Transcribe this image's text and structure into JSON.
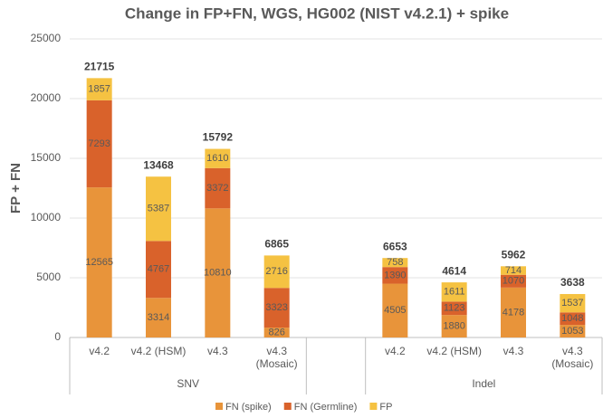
{
  "chart_data": {
    "type": "stacked_bar",
    "title": "Change in FP+FN, WGS, HG002 (NIST v4.2.1) + spike",
    "y_label": "FP + FN",
    "groups": [
      {
        "name": "SNV",
        "categories": [
          "v4.2",
          "v4.2 (HSM)",
          "v4.3",
          "v4.3 (Mosaic)"
        ]
      },
      {
        "name": "Indel",
        "categories": [
          "v4.2",
          "v4.2 (HSM)",
          "v4.3",
          "v4.3 (Mosaic)"
        ]
      }
    ],
    "series": [
      {
        "name": "FN (spike)",
        "color": "#e8943a",
        "values": [
          12565,
          3314,
          10810,
          826,
          4505,
          1880,
          4178,
          1053
        ]
      },
      {
        "name": "FN (Germline)",
        "color": "#d9622b",
        "values": [
          7293,
          4767,
          3372,
          3323,
          1390,
          1123,
          1070,
          1048
        ]
      },
      {
        "name": "FP",
        "color": "#f5c242",
        "values": [
          1857,
          5387,
          1610,
          2716,
          758,
          1611,
          714,
          1537
        ]
      }
    ],
    "totals": [
      21715,
      13468,
      15792,
      6865,
      6653,
      4614,
      5962,
      3638
    ],
    "ylim": [
      0,
      25000
    ],
    "yticks": [
      0,
      5000,
      10000,
      15000,
      20000,
      25000
    ],
    "grid": true,
    "legend": "bottom"
  }
}
